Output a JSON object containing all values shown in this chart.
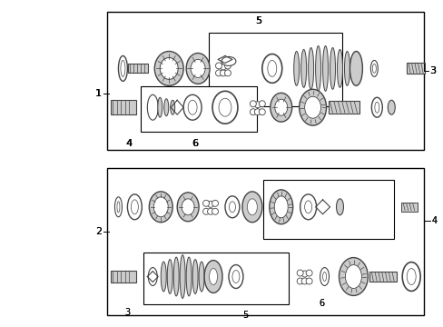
{
  "bg_color": "#ffffff",
  "border_color": "#000000",
  "part_color": "#444444",
  "gray_fill": "#aaaaaa",
  "light_gray": "#cccccc",
  "white": "#ffffff"
}
